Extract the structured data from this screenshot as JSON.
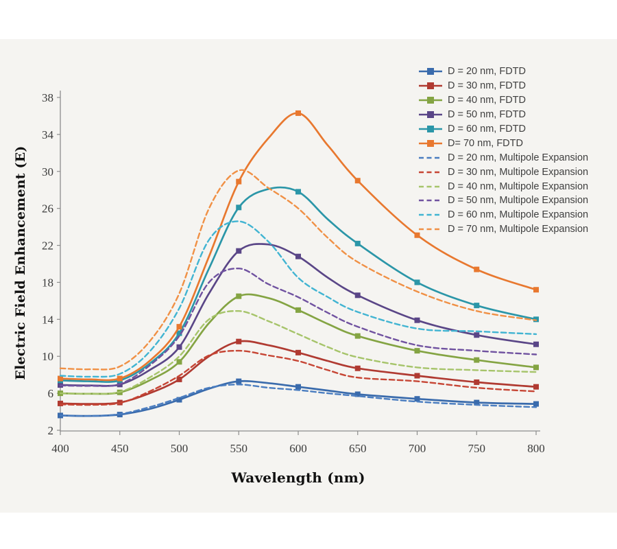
{
  "figure": {
    "page_color": "#ffffff",
    "background_color": "#f5f4f1",
    "axis_color": "#8c8c8c",
    "tick_label_color": "#3a3a3a"
  },
  "chart_data": {
    "type": "line",
    "title": "",
    "xlabel": "Wavelength (nm)",
    "ylabel": "Electric Field Enhancement (E)",
    "xlim": [
      400,
      800
    ],
    "ylim": [
      2,
      38
    ],
    "x_ticks": [
      400,
      450,
      500,
      550,
      600,
      650,
      700,
      750,
      800
    ],
    "y_ticks": [
      2,
      6,
      10,
      14,
      18,
      22,
      26,
      30,
      34,
      38
    ],
    "grid": false,
    "legend_position": "upper right",
    "x": [
      400,
      425,
      450,
      475,
      500,
      525,
      550,
      575,
      600,
      625,
      650,
      700,
      750,
      800
    ],
    "marker_x": [
      400,
      450,
      500,
      550,
      600,
      650,
      700,
      750,
      800
    ],
    "series": [
      {
        "name": "D = 20 nm, FDTD",
        "style": "solid",
        "marker": "square",
        "color": "#3a6bac",
        "values": [
          3.6,
          3.55,
          3.7,
          4.3,
          5.3,
          6.5,
          7.3,
          7.1,
          6.7,
          6.3,
          5.9,
          5.4,
          5.0,
          4.85
        ]
      },
      {
        "name": "D = 30 nm, FDTD",
        "style": "solid",
        "marker": "square",
        "color": "#b03a31",
        "values": [
          4.9,
          4.85,
          5.0,
          6.0,
          7.5,
          10.0,
          11.6,
          11.2,
          10.4,
          9.5,
          8.7,
          7.9,
          7.2,
          6.7
        ]
      },
      {
        "name": "D = 40 nm, FDTD",
        "style": "solid",
        "marker": "square",
        "color": "#84a443",
        "values": [
          6.0,
          5.95,
          6.1,
          7.4,
          9.4,
          13.6,
          16.5,
          16.3,
          15.0,
          13.5,
          12.2,
          10.6,
          9.6,
          8.8
        ]
      },
      {
        "name": "D = 50 nm, FDTD",
        "style": "solid",
        "marker": "square",
        "color": "#5a4687",
        "values": [
          6.9,
          6.85,
          6.95,
          8.5,
          11.0,
          16.8,
          21.4,
          22.1,
          20.8,
          18.5,
          16.6,
          13.9,
          12.3,
          11.3
        ]
      },
      {
        "name": "D = 60 nm, FDTD",
        "style": "solid",
        "marker": "square",
        "color": "#2b96a8",
        "values": [
          7.4,
          7.3,
          7.4,
          9.2,
          12.5,
          19.5,
          26.1,
          28.1,
          27.8,
          24.8,
          22.2,
          18.0,
          15.5,
          14.0
        ]
      },
      {
        "name": "D= 70 nm, FDTD",
        "style": "solid",
        "marker": "square",
        "color": "#e8782f",
        "values": [
          7.6,
          7.5,
          7.6,
          9.5,
          13.2,
          20.8,
          28.9,
          33.6,
          36.3,
          32.8,
          29.0,
          23.1,
          19.4,
          17.2
        ]
      },
      {
        "name": "D = 20 nm, Multipole Expansion",
        "style": "dashed",
        "marker": "none",
        "color": "#4a7dc0",
        "values": [
          3.6,
          3.55,
          3.75,
          4.5,
          5.5,
          6.6,
          6.95,
          6.6,
          6.35,
          6.0,
          5.7,
          5.1,
          4.75,
          4.5
        ]
      },
      {
        "name": "D = 30 nm, Multipole Expansion",
        "style": "dashed",
        "marker": "none",
        "color": "#c64534",
        "values": [
          4.8,
          4.75,
          4.95,
          6.2,
          7.9,
          10.1,
          10.6,
          10.1,
          9.5,
          8.5,
          7.7,
          7.3,
          6.6,
          6.2
        ]
      },
      {
        "name": "D = 40 nm, Multipole Expansion",
        "style": "dashed",
        "marker": "none",
        "color": "#a6c46a",
        "values": [
          6.0,
          5.95,
          6.15,
          7.7,
          10.0,
          14.0,
          14.9,
          13.8,
          12.4,
          11.0,
          9.9,
          8.8,
          8.5,
          8.3
        ]
      },
      {
        "name": "D = 50 nm, Multipole Expansion",
        "style": "dashed",
        "marker": "none",
        "color": "#7052a0",
        "values": [
          6.85,
          6.8,
          7.0,
          9.0,
          12.2,
          18.0,
          19.5,
          17.8,
          16.4,
          14.7,
          13.2,
          11.2,
          10.6,
          10.2
        ]
      },
      {
        "name": "D = 60 nm, Multipole Expansion",
        "style": "dashed",
        "marker": "none",
        "color": "#41b4d2",
        "values": [
          7.9,
          7.8,
          8.1,
          10.5,
          15.2,
          22.6,
          24.6,
          22.4,
          18.5,
          16.4,
          14.8,
          13.0,
          12.7,
          12.4
        ]
      },
      {
        "name": "D = 70 nm, Multipole Expansion",
        "style": "dashed",
        "marker": "none",
        "color": "#f09045",
        "values": [
          8.7,
          8.6,
          8.9,
          11.6,
          16.8,
          26.0,
          30.1,
          28.2,
          26.0,
          22.8,
          20.2,
          17.0,
          14.9,
          13.9
        ]
      }
    ]
  }
}
